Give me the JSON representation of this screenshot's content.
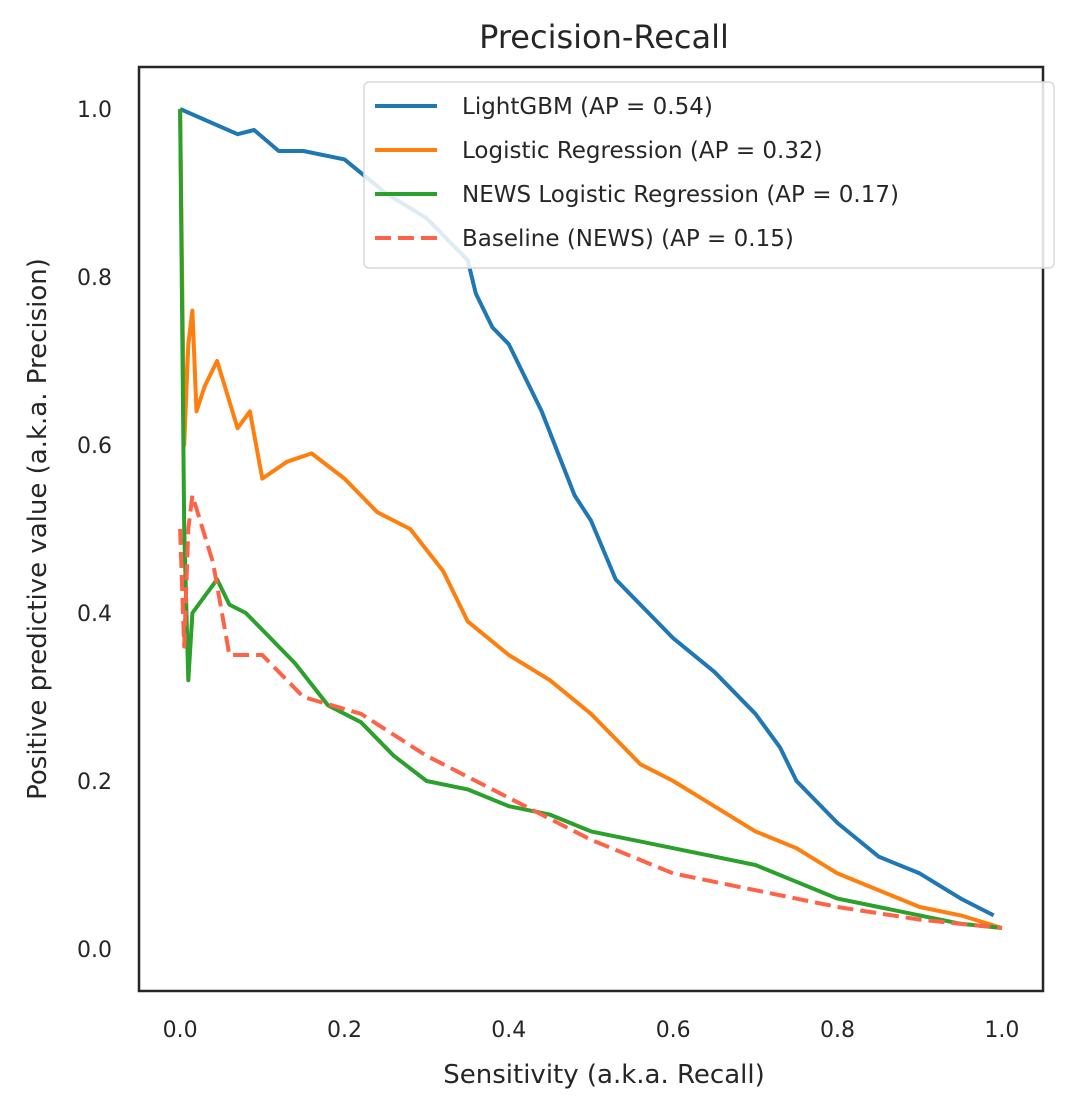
{
  "chart_data": {
    "type": "line",
    "title": "Precision-Recall",
    "xlabel": "Sensitivity (a.k.a. Recall)",
    "ylabel": "Positive predictive value (a.k.a. Precision)",
    "xlim": [
      -0.05,
      1.05
    ],
    "ylim": [
      -0.05,
      1.05
    ],
    "xticks": [
      0.0,
      0.2,
      0.4,
      0.6,
      0.8,
      1.0
    ],
    "xtick_labels": [
      "0.0",
      "0.2",
      "0.4",
      "0.6",
      "0.8",
      "1.0"
    ],
    "yticks": [
      0.0,
      0.2,
      0.4,
      0.6,
      0.8,
      1.0
    ],
    "ytick_labels": [
      "0.0",
      "0.2",
      "0.4",
      "0.6",
      "0.8",
      "1.0"
    ],
    "grid": false,
    "legend_position": "top-right",
    "series": [
      {
        "name": "LightGBM (AP = 0.54)",
        "color": "#1f77b4",
        "dash": "solid",
        "x": [
          0.0,
          0.07,
          0.09,
          0.12,
          0.15,
          0.2,
          0.25,
          0.3,
          0.35,
          0.36,
          0.38,
          0.4,
          0.44,
          0.46,
          0.48,
          0.5,
          0.53,
          0.55,
          0.6,
          0.65,
          0.7,
          0.73,
          0.75,
          0.8,
          0.85,
          0.9,
          0.95,
          0.99
        ],
        "y": [
          1.0,
          0.97,
          0.975,
          0.95,
          0.95,
          0.94,
          0.9,
          0.87,
          0.82,
          0.78,
          0.74,
          0.72,
          0.64,
          0.59,
          0.54,
          0.51,
          0.44,
          0.42,
          0.37,
          0.33,
          0.28,
          0.24,
          0.2,
          0.15,
          0.11,
          0.09,
          0.06,
          0.04
        ]
      },
      {
        "name": "Logistic Regression (AP = 0.32)",
        "color": "#ff7f0e",
        "dash": "solid",
        "x": [
          0.0,
          0.005,
          0.01,
          0.015,
          0.02,
          0.03,
          0.045,
          0.07,
          0.085,
          0.1,
          0.13,
          0.16,
          0.2,
          0.24,
          0.28,
          0.32,
          0.35,
          0.4,
          0.45,
          0.5,
          0.53,
          0.56,
          0.6,
          0.65,
          0.7,
          0.75,
          0.8,
          0.85,
          0.9,
          0.95,
          1.0
        ],
        "y": [
          1.0,
          0.6,
          0.72,
          0.76,
          0.64,
          0.67,
          0.7,
          0.62,
          0.64,
          0.56,
          0.58,
          0.59,
          0.56,
          0.52,
          0.5,
          0.45,
          0.39,
          0.35,
          0.32,
          0.28,
          0.25,
          0.22,
          0.2,
          0.17,
          0.14,
          0.12,
          0.09,
          0.07,
          0.05,
          0.04,
          0.025
        ]
      },
      {
        "name": "NEWS Logistic Regression (AP = 0.17)",
        "color": "#2ca02c",
        "dash": "solid",
        "x": [
          0.0,
          0.005,
          0.01,
          0.015,
          0.03,
          0.045,
          0.06,
          0.08,
          0.1,
          0.14,
          0.18,
          0.22,
          0.26,
          0.3,
          0.35,
          0.4,
          0.45,
          0.5,
          0.55,
          0.6,
          0.65,
          0.7,
          0.75,
          0.8,
          0.85,
          0.9,
          0.95,
          1.0
        ],
        "y": [
          1.0,
          0.5,
          0.32,
          0.4,
          0.42,
          0.44,
          0.41,
          0.4,
          0.38,
          0.34,
          0.29,
          0.27,
          0.23,
          0.2,
          0.19,
          0.17,
          0.16,
          0.14,
          0.13,
          0.12,
          0.11,
          0.1,
          0.08,
          0.06,
          0.05,
          0.04,
          0.03,
          0.025
        ]
      },
      {
        "name": "Baseline (NEWS) (AP = 0.15)",
        "color": "#ff6347",
        "dash": "dashed",
        "x": [
          0.0,
          0.005,
          0.01,
          0.015,
          0.04,
          0.06,
          0.1,
          0.15,
          0.22,
          0.3,
          0.4,
          0.5,
          0.6,
          0.7,
          0.8,
          0.9,
          1.0
        ],
        "y": [
          0.5,
          0.36,
          0.5,
          0.54,
          0.46,
          0.35,
          0.35,
          0.3,
          0.28,
          0.23,
          0.18,
          0.13,
          0.09,
          0.07,
          0.05,
          0.035,
          0.025
        ]
      }
    ]
  }
}
